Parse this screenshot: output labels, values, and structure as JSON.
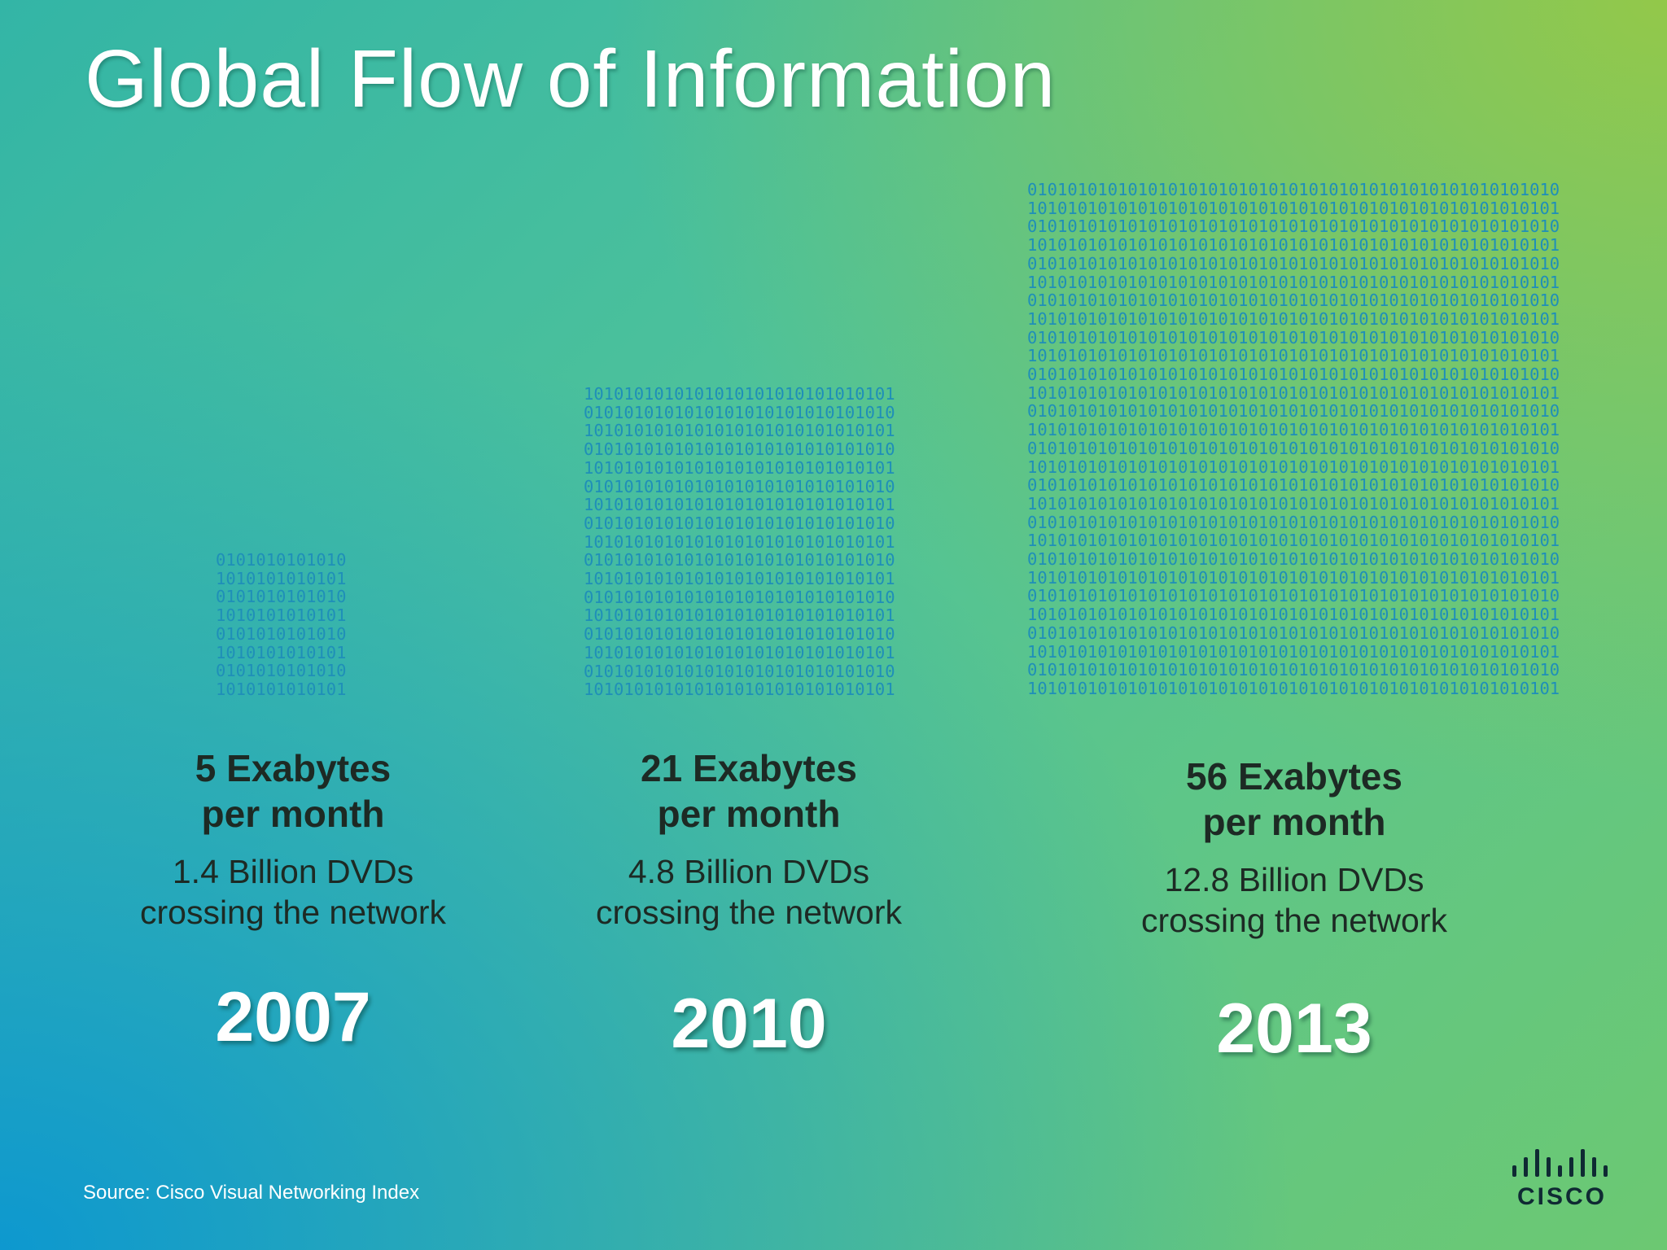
{
  "title": "Global Flow of Information",
  "binary_rows": {
    "a_short": "0101010101010",
    "b_short": "1010101010101",
    "a_mid": "1010101010101010101010101010101",
    "b_mid": "0101010101010101010101010101010",
    "a_long": "01010101010101010101010101010101010101010101010101010",
    "b_long": "10101010101010101010101010101010101010101010101010101"
  },
  "columns": [
    {
      "volume": "5 Exabytes",
      "volume_unit": "per month",
      "dvds": "1.4 Billion DVDs",
      "dvds_note": "crossing the network",
      "year": "2007"
    },
    {
      "volume": "21 Exabytes",
      "volume_unit": "per month",
      "dvds": "4.8 Billion DVDs",
      "dvds_note": "crossing the network",
      "year": "2010"
    },
    {
      "volume": "56 Exabytes",
      "volume_unit": "per month",
      "dvds": "12.8 Billion DVDs",
      "dvds_note": "crossing the network",
      "year": "2013"
    }
  ],
  "source": "Source: Cisco Visual Networking Index",
  "logo": {
    "word": "CISCO",
    "icon": "cisco-bars-icon"
  }
}
